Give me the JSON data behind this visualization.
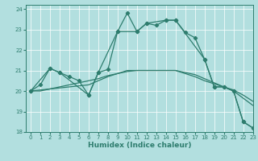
{
  "xlabel": "Humidex (Indice chaleur)",
  "background_color": "#b2dfdf",
  "grid_color": "#ffffff",
  "line_color": "#2e7d6e",
  "xlim": [
    -0.5,
    23
  ],
  "ylim": [
    18,
    24.2
  ],
  "yticks": [
    18,
    19,
    20,
    21,
    22,
    23,
    24
  ],
  "xticks": [
    0,
    1,
    2,
    3,
    4,
    5,
    6,
    7,
    8,
    9,
    10,
    11,
    12,
    13,
    14,
    15,
    16,
    17,
    18,
    19,
    20,
    21,
    22,
    23
  ],
  "s1_x": [
    0,
    1,
    2,
    3,
    4,
    5,
    6,
    7,
    8,
    9,
    10,
    11,
    12,
    13,
    14,
    15,
    16,
    17,
    18,
    19,
    20,
    21,
    22,
    23
  ],
  "s1_y": [
    20.0,
    20.3,
    21.1,
    20.9,
    20.7,
    20.5,
    19.8,
    20.9,
    21.05,
    22.9,
    23.8,
    22.9,
    23.3,
    23.2,
    23.45,
    23.45,
    22.85,
    22.6,
    21.55,
    20.2,
    20.2,
    20.0,
    18.5,
    18.2
  ],
  "s2_x": [
    0,
    1,
    2,
    3,
    4,
    5,
    6,
    7,
    8,
    9,
    10,
    11,
    12,
    13,
    14,
    15,
    16,
    17,
    18,
    19,
    20,
    21,
    22,
    23
  ],
  "s2_y": [
    20.0,
    20.05,
    20.1,
    20.15,
    20.2,
    20.25,
    20.3,
    20.5,
    20.7,
    20.85,
    21.0,
    21.0,
    21.0,
    21.0,
    21.0,
    21.0,
    20.85,
    20.7,
    20.5,
    20.35,
    20.2,
    20.05,
    19.8,
    19.5
  ],
  "s3_x": [
    0,
    2,
    3,
    6,
    7,
    9,
    11,
    12,
    14,
    15,
    18,
    19,
    20,
    21,
    22,
    23
  ],
  "s3_y": [
    20.0,
    21.1,
    20.9,
    19.8,
    20.9,
    22.9,
    22.9,
    23.3,
    23.45,
    23.45,
    21.55,
    20.2,
    20.2,
    20.0,
    18.5,
    18.2
  ],
  "s4_x": [
    0,
    1,
    2,
    3,
    4,
    5,
    6,
    7,
    8,
    9,
    10,
    11,
    12,
    13,
    14,
    15,
    16,
    17,
    18,
    19,
    20,
    21,
    22,
    23
  ],
  "s4_y": [
    20.0,
    20.0,
    20.1,
    20.2,
    20.3,
    20.4,
    20.5,
    20.6,
    20.75,
    20.85,
    20.95,
    21.0,
    21.0,
    21.0,
    21.0,
    21.0,
    20.9,
    20.8,
    20.6,
    20.4,
    20.2,
    20.0,
    19.65,
    19.3
  ]
}
